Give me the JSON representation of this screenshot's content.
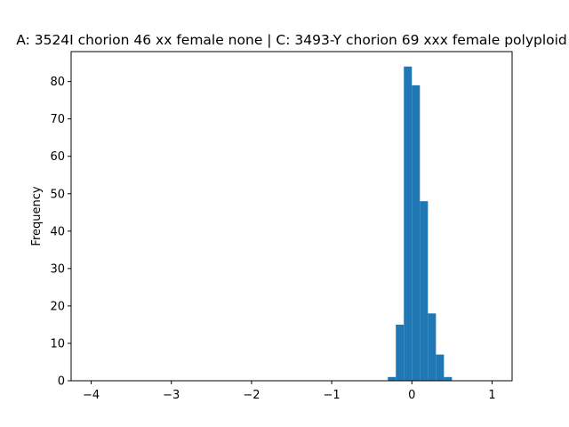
{
  "chart_data": {
    "type": "bar",
    "title": "A: 3524I chorion 46 xx female none | C: 3493-Y chorion 69 xxx female polyploid",
    "xlabel": "",
    "ylabel": "Frequency",
    "xlim": [
      -4.25,
      1.25
    ],
    "ylim": [
      0,
      88
    ],
    "xticks": [
      -4,
      -3,
      -2,
      -1,
      0,
      1
    ],
    "yticks": [
      0,
      10,
      20,
      30,
      40,
      50,
      60,
      70,
      80
    ],
    "bar_color": "#1f77b4",
    "bin_width": 0.1,
    "bins": [
      {
        "x0": -0.3,
        "x1": -0.2,
        "count": 1
      },
      {
        "x0": -0.2,
        "x1": -0.1,
        "count": 15
      },
      {
        "x0": -0.1,
        "x1": 0.0,
        "count": 84
      },
      {
        "x0": 0.0,
        "x1": 0.1,
        "count": 79
      },
      {
        "x0": 0.1,
        "x1": 0.2,
        "count": 48
      },
      {
        "x0": 0.2,
        "x1": 0.3,
        "count": 18
      },
      {
        "x0": 0.3,
        "x1": 0.4,
        "count": 7
      },
      {
        "x0": 0.4,
        "x1": 0.5,
        "count": 1
      }
    ]
  }
}
